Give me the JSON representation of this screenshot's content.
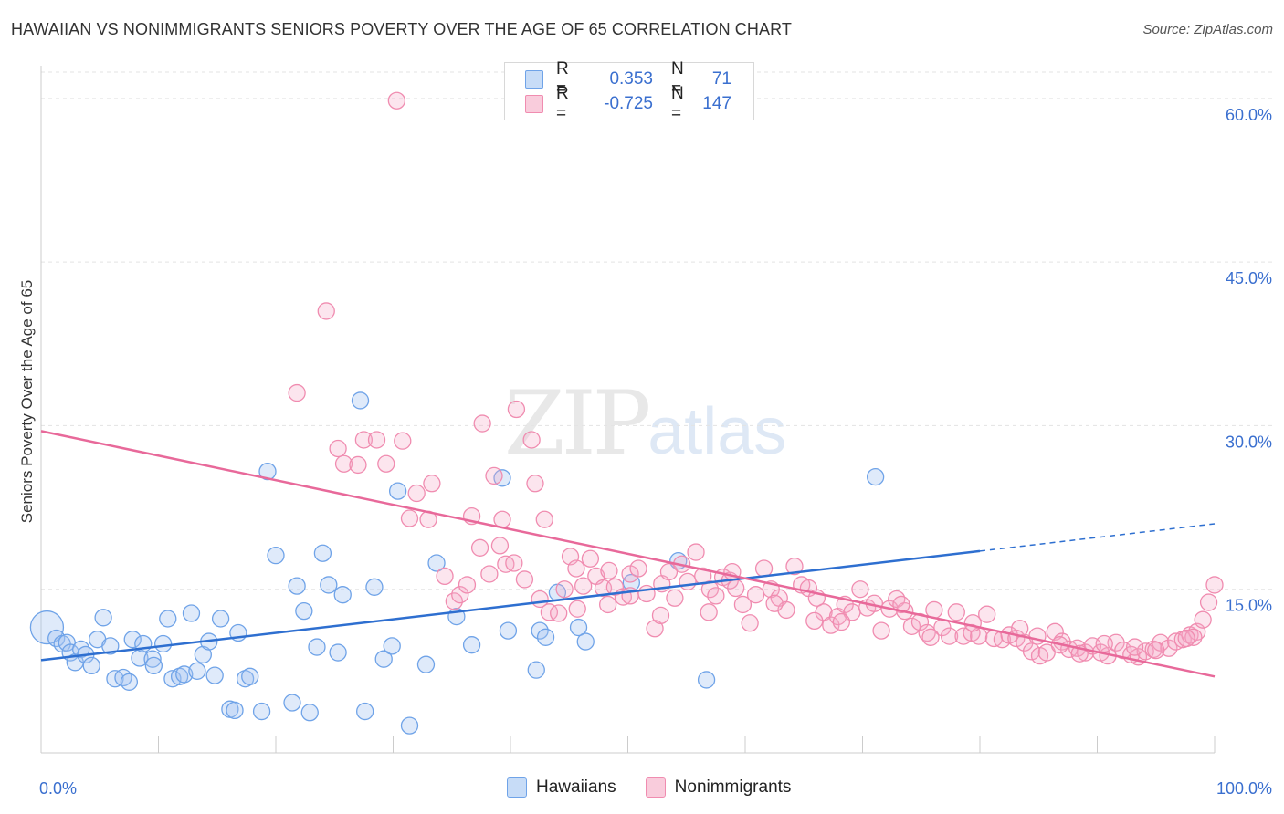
{
  "title": "HAWAIIAN VS NONIMMIGRANTS SENIORS POVERTY OVER THE AGE OF 65 CORRELATION CHART",
  "source": "Source: ZipAtlas.com",
  "watermark": {
    "zip": "ZIP",
    "atlas": "atlas"
  },
  "colors": {
    "hawaiians": "#6fa3e8",
    "nonimmigrants": "#f08cb0",
    "hawaiians_line": "#2e6fd0",
    "nonimmigrants_line": "#e8699a",
    "tick_label": "#3a6fcf"
  },
  "legend": {
    "rows": [
      {
        "series": "Hawaiians",
        "r_label": "R =",
        "r_value": "0.353",
        "n_label": "N =",
        "n_value": "71"
      },
      {
        "series": "Nonimmigrants",
        "r_label": "R =",
        "r_value": "-0.725",
        "n_label": "N =",
        "n_value": "147"
      }
    ]
  },
  "bottom_legend": [
    "Hawaiians",
    "Nonimmigrants"
  ],
  "chart_data": {
    "type": "scatter",
    "title": "HAWAIIAN VS NONIMMIGRANTS SENIORS POVERTY OVER THE AGE OF 65 CORRELATION CHART",
    "xlabel": "",
    "ylabel": "Seniors Poverty Over the Age of 65",
    "xlim": [
      0,
      100
    ],
    "ylim": [
      0,
      63
    ],
    "x_tick_labels": [
      "0.0%",
      "100.0%"
    ],
    "y_ticks": [
      15,
      30,
      45,
      60
    ],
    "y_tick_labels": [
      "15.0%",
      "30.0%",
      "45.0%",
      "60.0%"
    ],
    "grid": true,
    "legend_position": "top-center",
    "series": [
      {
        "name": "Hawaiians",
        "points": [
          [
            0.5,
            11.5
          ],
          [
            1.3,
            10.5
          ],
          [
            1.8,
            10.0
          ],
          [
            2.2,
            10.1
          ],
          [
            2.5,
            9.2
          ],
          [
            2.9,
            8.3
          ],
          [
            3.4,
            9.5
          ],
          [
            3.8,
            9.0
          ],
          [
            4.3,
            8.0
          ],
          [
            4.8,
            10.4
          ],
          [
            5.3,
            12.4
          ],
          [
            5.9,
            9.8
          ],
          [
            6.3,
            6.8
          ],
          [
            7.0,
            6.9
          ],
          [
            7.5,
            6.5
          ],
          [
            7.8,
            10.4
          ],
          [
            8.4,
            8.7
          ],
          [
            8.7,
            10.0
          ],
          [
            9.5,
            8.6
          ],
          [
            9.6,
            8.0
          ],
          [
            10.4,
            10.0
          ],
          [
            10.8,
            12.3
          ],
          [
            11.2,
            6.8
          ],
          [
            11.8,
            7.0
          ],
          [
            12.2,
            7.2
          ],
          [
            12.8,
            12.8
          ],
          [
            13.3,
            7.5
          ],
          [
            13.8,
            9.0
          ],
          [
            14.3,
            10.2
          ],
          [
            14.8,
            7.1
          ],
          [
            15.3,
            12.3
          ],
          [
            16.1,
            4.0
          ],
          [
            16.5,
            3.9
          ],
          [
            16.8,
            11.0
          ],
          [
            17.4,
            6.8
          ],
          [
            17.8,
            7.0
          ],
          [
            18.8,
            3.8
          ],
          [
            19.3,
            25.8
          ],
          [
            20.0,
            18.1
          ],
          [
            21.4,
            4.6
          ],
          [
            21.8,
            15.3
          ],
          [
            22.4,
            13.0
          ],
          [
            22.9,
            3.7
          ],
          [
            23.5,
            9.7
          ],
          [
            24.0,
            18.3
          ],
          [
            24.5,
            15.4
          ],
          [
            25.3,
            9.2
          ],
          [
            25.7,
            14.5
          ],
          [
            27.2,
            32.3
          ],
          [
            27.6,
            3.8
          ],
          [
            28.4,
            15.2
          ],
          [
            29.2,
            8.6
          ],
          [
            29.9,
            9.8
          ],
          [
            30.4,
            24.0
          ],
          [
            31.4,
            2.5
          ],
          [
            32.8,
            8.1
          ],
          [
            33.7,
            17.4
          ],
          [
            35.4,
            12.5
          ],
          [
            36.7,
            9.9
          ],
          [
            39.3,
            25.2
          ],
          [
            39.8,
            11.2
          ],
          [
            42.2,
            7.6
          ],
          [
            42.5,
            11.2
          ],
          [
            43.0,
            10.6
          ],
          [
            44.0,
            14.7
          ],
          [
            45.8,
            11.5
          ],
          [
            46.4,
            10.2
          ],
          [
            50.3,
            15.6
          ],
          [
            54.3,
            17.6
          ],
          [
            56.7,
            6.7
          ],
          [
            71.1,
            25.3
          ]
        ]
      },
      {
        "name": "Nonimmigrants",
        "points": [
          [
            24.3,
            40.5
          ],
          [
            30.3,
            59.8
          ],
          [
            21.8,
            33.0
          ],
          [
            27.5,
            28.7
          ],
          [
            28.6,
            28.7
          ],
          [
            29.4,
            26.5
          ],
          [
            30.8,
            28.6
          ],
          [
            25.3,
            27.9
          ],
          [
            25.8,
            26.5
          ],
          [
            27.0,
            26.4
          ],
          [
            31.4,
            21.5
          ],
          [
            32.0,
            23.8
          ],
          [
            33.0,
            21.4
          ],
          [
            33.3,
            24.7
          ],
          [
            37.6,
            30.2
          ],
          [
            38.6,
            25.4
          ],
          [
            39.3,
            21.4
          ],
          [
            40.5,
            31.5
          ],
          [
            41.8,
            28.7
          ],
          [
            42.1,
            24.7
          ],
          [
            42.9,
            21.4
          ],
          [
            34.4,
            16.2
          ],
          [
            35.2,
            13.9
          ],
          [
            35.7,
            14.5
          ],
          [
            36.3,
            15.4
          ],
          [
            36.7,
            21.7
          ],
          [
            37.4,
            18.8
          ],
          [
            38.2,
            16.4
          ],
          [
            39.1,
            19.0
          ],
          [
            39.6,
            17.3
          ],
          [
            40.3,
            17.4
          ],
          [
            41.2,
            15.9
          ],
          [
            42.5,
            14.1
          ],
          [
            43.3,
            12.9
          ],
          [
            44.1,
            12.8
          ],
          [
            44.6,
            15.0
          ],
          [
            45.1,
            18.0
          ],
          [
            45.6,
            16.9
          ],
          [
            46.2,
            15.3
          ],
          [
            46.8,
            17.8
          ],
          [
            47.3,
            16.2
          ],
          [
            47.9,
            15.1
          ],
          [
            48.4,
            16.7
          ],
          [
            48.9,
            15.2
          ],
          [
            49.6,
            14.3
          ],
          [
            50.2,
            16.4
          ],
          [
            50.9,
            16.9
          ],
          [
            51.6,
            14.6
          ],
          [
            52.3,
            11.4
          ],
          [
            52.9,
            15.5
          ],
          [
            53.5,
            16.6
          ],
          [
            54.0,
            14.2
          ],
          [
            54.6,
            17.3
          ],
          [
            55.1,
            15.7
          ],
          [
            55.8,
            18.4
          ],
          [
            56.4,
            16.2
          ],
          [
            57.0,
            15.0
          ],
          [
            57.5,
            14.4
          ],
          [
            58.1,
            16.1
          ],
          [
            58.7,
            15.8
          ],
          [
            59.2,
            15.1
          ],
          [
            59.8,
            13.6
          ],
          [
            60.4,
            11.9
          ],
          [
            60.9,
            14.5
          ],
          [
            61.6,
            16.9
          ],
          [
            62.2,
            15.0
          ],
          [
            62.9,
            14.2
          ],
          [
            63.5,
            13.1
          ],
          [
            64.2,
            17.1
          ],
          [
            64.8,
            15.4
          ],
          [
            65.4,
            15.1
          ],
          [
            66.1,
            14.2
          ],
          [
            66.7,
            12.9
          ],
          [
            67.3,
            11.7
          ],
          [
            67.9,
            12.5
          ],
          [
            68.5,
            13.6
          ],
          [
            69.1,
            12.9
          ],
          [
            69.8,
            15.0
          ],
          [
            70.4,
            13.3
          ],
          [
            71.0,
            13.7
          ],
          [
            71.6,
            11.2
          ],
          [
            72.3,
            13.2
          ],
          [
            72.9,
            14.1
          ],
          [
            73.6,
            13.0
          ],
          [
            74.2,
            11.6
          ],
          [
            74.9,
            12.0
          ],
          [
            75.5,
            11.0
          ],
          [
            76.1,
            13.1
          ],
          [
            76.8,
            11.5
          ],
          [
            77.4,
            10.7
          ],
          [
            78.0,
            12.9
          ],
          [
            78.6,
            10.7
          ],
          [
            79.3,
            11.0
          ],
          [
            79.9,
            10.7
          ],
          [
            80.6,
            12.7
          ],
          [
            81.2,
            10.5
          ],
          [
            81.9,
            10.4
          ],
          [
            82.5,
            10.8
          ],
          [
            83.1,
            10.5
          ],
          [
            83.8,
            10.1
          ],
          [
            84.4,
            9.3
          ],
          [
            85.1,
            8.9
          ],
          [
            85.7,
            9.2
          ],
          [
            86.4,
            11.1
          ],
          [
            87.0,
            10.2
          ],
          [
            87.6,
            9.5
          ],
          [
            88.3,
            9.6
          ],
          [
            89.0,
            9.2
          ],
          [
            89.6,
            9.8
          ],
          [
            90.3,
            9.2
          ],
          [
            90.9,
            8.9
          ],
          [
            91.6,
            10.1
          ],
          [
            92.2,
            9.4
          ],
          [
            92.9,
            9.0
          ],
          [
            93.5,
            8.8
          ],
          [
            94.1,
            9.3
          ],
          [
            94.8,
            9.5
          ],
          [
            95.4,
            10.1
          ],
          [
            96.1,
            9.6
          ],
          [
            96.7,
            10.2
          ],
          [
            97.3,
            10.4
          ],
          [
            97.9,
            10.8
          ],
          [
            98.5,
            11.1
          ],
          [
            99.0,
            12.2
          ],
          [
            99.5,
            13.8
          ],
          [
            100.0,
            15.4
          ],
          [
            50.2,
            14.4
          ],
          [
            52.8,
            12.6
          ],
          [
            56.9,
            12.9
          ],
          [
            62.5,
            13.7
          ],
          [
            68.2,
            12.0
          ],
          [
            73.3,
            13.6
          ],
          [
            79.4,
            11.9
          ],
          [
            84.9,
            10.7
          ],
          [
            90.6,
            10.0
          ],
          [
            95.0,
            9.4
          ],
          [
            98.2,
            10.6
          ],
          [
            45.7,
            13.2
          ],
          [
            48.3,
            13.6
          ],
          [
            58.9,
            16.6
          ],
          [
            65.9,
            12.1
          ],
          [
            75.8,
            10.6
          ],
          [
            86.8,
            9.9
          ],
          [
            93.2,
            9.7
          ],
          [
            97.6,
            10.5
          ],
          [
            88.5,
            9.1
          ],
          [
            83.4,
            11.4
          ]
        ]
      }
    ],
    "trendlines": [
      {
        "series": "Hawaiians",
        "x": [
          0,
          80,
          100
        ],
        "y": [
          8.5,
          18.5,
          21.0
        ],
        "style": "solid-then-dashed"
      },
      {
        "series": "Nonimmigrants",
        "x": [
          0,
          100
        ],
        "y": [
          29.5,
          7.0
        ],
        "style": "solid"
      }
    ]
  }
}
